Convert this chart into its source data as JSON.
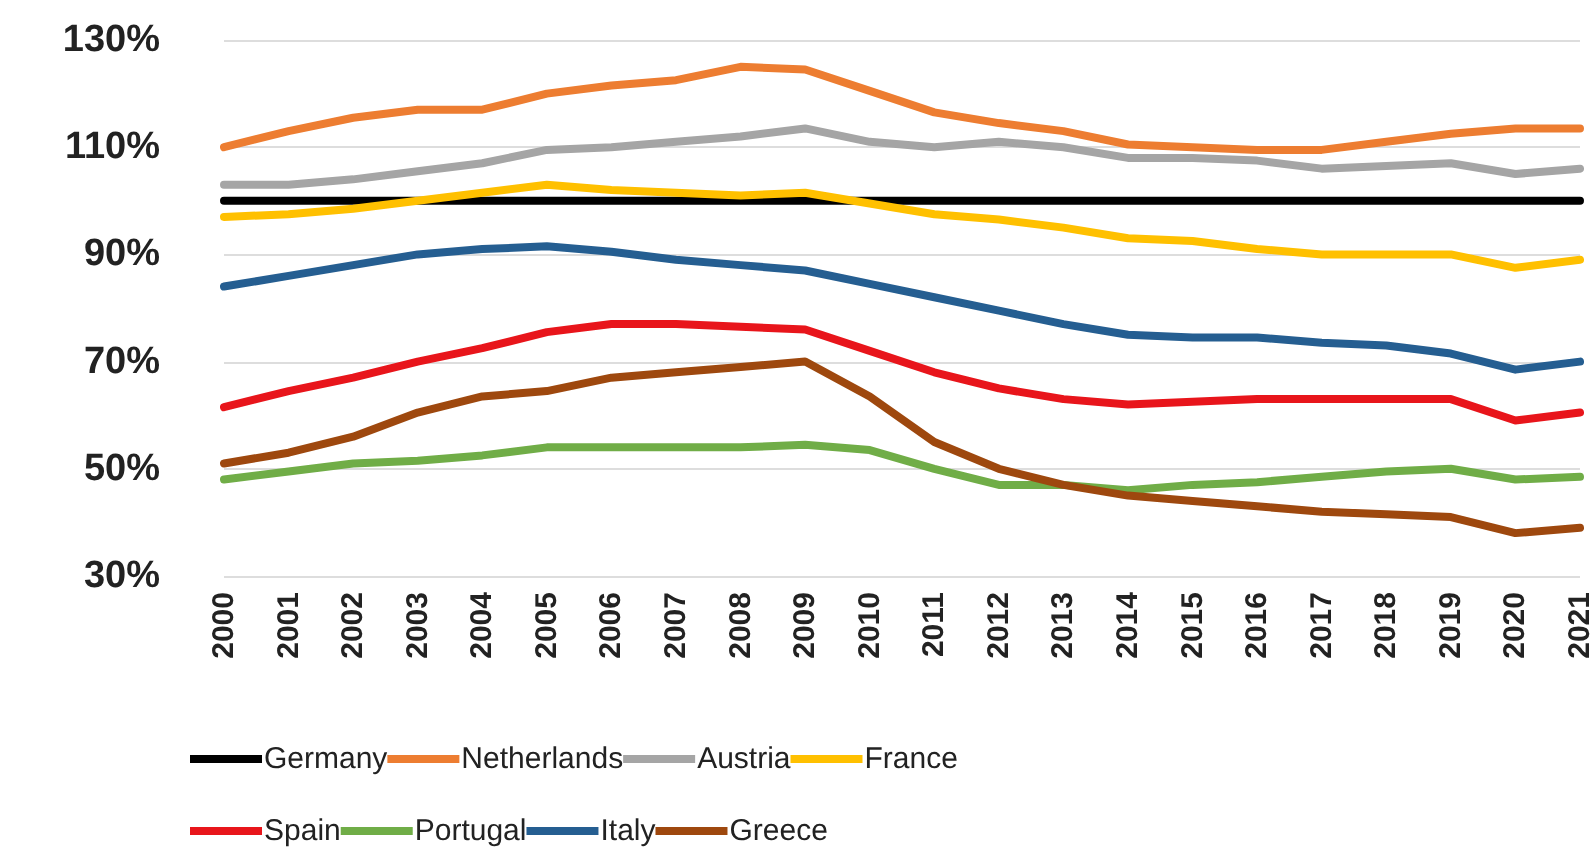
{
  "chart_data": {
    "type": "line",
    "categories": [
      "2000",
      "2001",
      "2002",
      "2003",
      "2004",
      "2005",
      "2006",
      "2007",
      "2008",
      "2009",
      "2010",
      "2011",
      "2012",
      "2013",
      "2014",
      "2015",
      "2016",
      "2017",
      "2018",
      "2019",
      "2020",
      "2021"
    ],
    "series": [
      {
        "name": "Germany",
        "color": "#000000",
        "values": [
          100,
          100,
          100,
          100,
          100,
          100,
          100,
          100,
          100,
          100,
          100,
          100,
          100,
          100,
          100,
          100,
          100,
          100,
          100,
          100,
          100,
          100
        ]
      },
      {
        "name": "Netherlands",
        "color": "#ed7d31",
        "values": [
          110,
          113,
          115.5,
          117,
          117,
          120,
          121.5,
          122.5,
          125,
          124.5,
          120.5,
          116.5,
          114.5,
          113,
          110.5,
          110,
          109.5,
          109.5,
          111,
          112.5,
          113.5,
          113.5
        ]
      },
      {
        "name": "Austria",
        "color": "#a5a5a5",
        "values": [
          103,
          103,
          104,
          105.5,
          107,
          109.5,
          110,
          111,
          112,
          113.5,
          111,
          110,
          111,
          110,
          108,
          108,
          107.5,
          106,
          106.5,
          107,
          105,
          106
        ]
      },
      {
        "name": "France",
        "color": "#ffc000",
        "values": [
          97,
          97.5,
          98.5,
          100,
          101.5,
          103,
          102,
          101.5,
          101,
          101.5,
          99.5,
          97.5,
          96.5,
          95,
          93,
          92.5,
          91,
          90,
          90,
          90,
          87.5,
          89
        ]
      },
      {
        "name": "Spain",
        "color": "#e8151b",
        "values": [
          61.5,
          64.5,
          67,
          70,
          72.5,
          75.5,
          77,
          77,
          76.5,
          76,
          72,
          68,
          65,
          63,
          62,
          62.5,
          63,
          63,
          63,
          63,
          59,
          60.5
        ]
      },
      {
        "name": "Portugal",
        "color": "#70ad47",
        "values": [
          48,
          49.5,
          51,
          51.5,
          52.5,
          54,
          54,
          54,
          54,
          54.5,
          53.5,
          50,
          47,
          47,
          46,
          47,
          47.5,
          48.5,
          49.5,
          50,
          48,
          48.5
        ]
      },
      {
        "name": "Italy",
        "color": "#255e91",
        "values": [
          84,
          86,
          88,
          90,
          91,
          91.5,
          90.5,
          89,
          88,
          87,
          84.5,
          82,
          79.5,
          77,
          75,
          74.5,
          74.5,
          73.5,
          73,
          71.5,
          68.5,
          70
        ]
      },
      {
        "name": "Greece",
        "color": "#9e480e",
        "values": [
          51,
          53,
          56,
          60.5,
          63.5,
          64.5,
          67,
          68,
          69,
          70,
          63.5,
          55,
          50,
          47,
          45,
          44,
          43,
          42,
          41.5,
          41,
          38,
          39
        ]
      }
    ],
    "ylim": [
      30,
      130
    ],
    "yticks": [
      {
        "value": 30,
        "label": "30%"
      },
      {
        "value": 50,
        "label": "50%"
      },
      {
        "value": 70,
        "label": "70%"
      },
      {
        "value": 90,
        "label": "90%"
      },
      {
        "value": 110,
        "label": "110%"
      },
      {
        "value": 130,
        "label": "130%"
      }
    ],
    "grid": "y",
    "legend": "bottom",
    "marker": "none",
    "line_style": "solid"
  }
}
